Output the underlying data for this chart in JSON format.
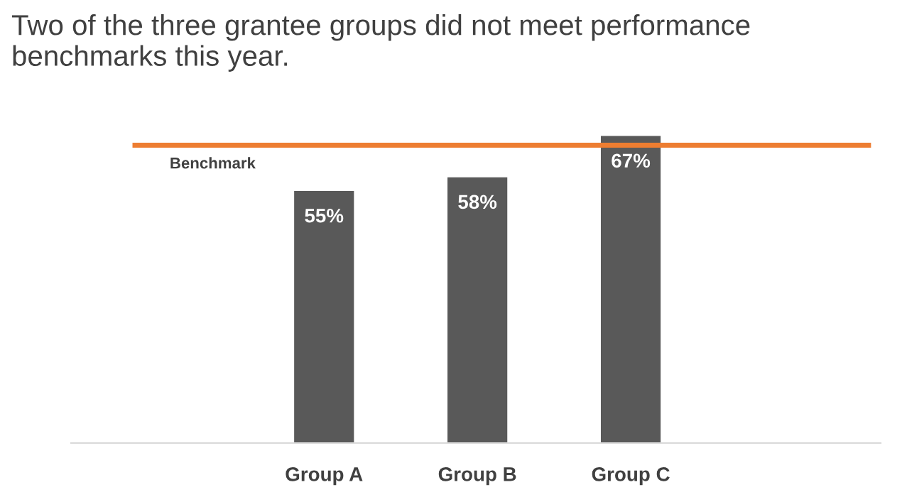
{
  "chart_data": {
    "type": "bar",
    "title": "Two of the three grantee groups did not meet performance benchmarks this year.",
    "categories": [
      "Group A",
      "Group B",
      "Group C"
    ],
    "values": [
      55,
      58,
      67
    ],
    "value_labels": [
      "55%",
      "58%",
      "67%"
    ],
    "color": "#595959",
    "tick_labels": "x",
    "grid": false,
    "legend": false,
    "ref_lines": [
      {
        "axis": "y",
        "value": 65,
        "label": "Benchmark",
        "color": "#ed7d31",
        "line_style": "solid"
      }
    ]
  }
}
